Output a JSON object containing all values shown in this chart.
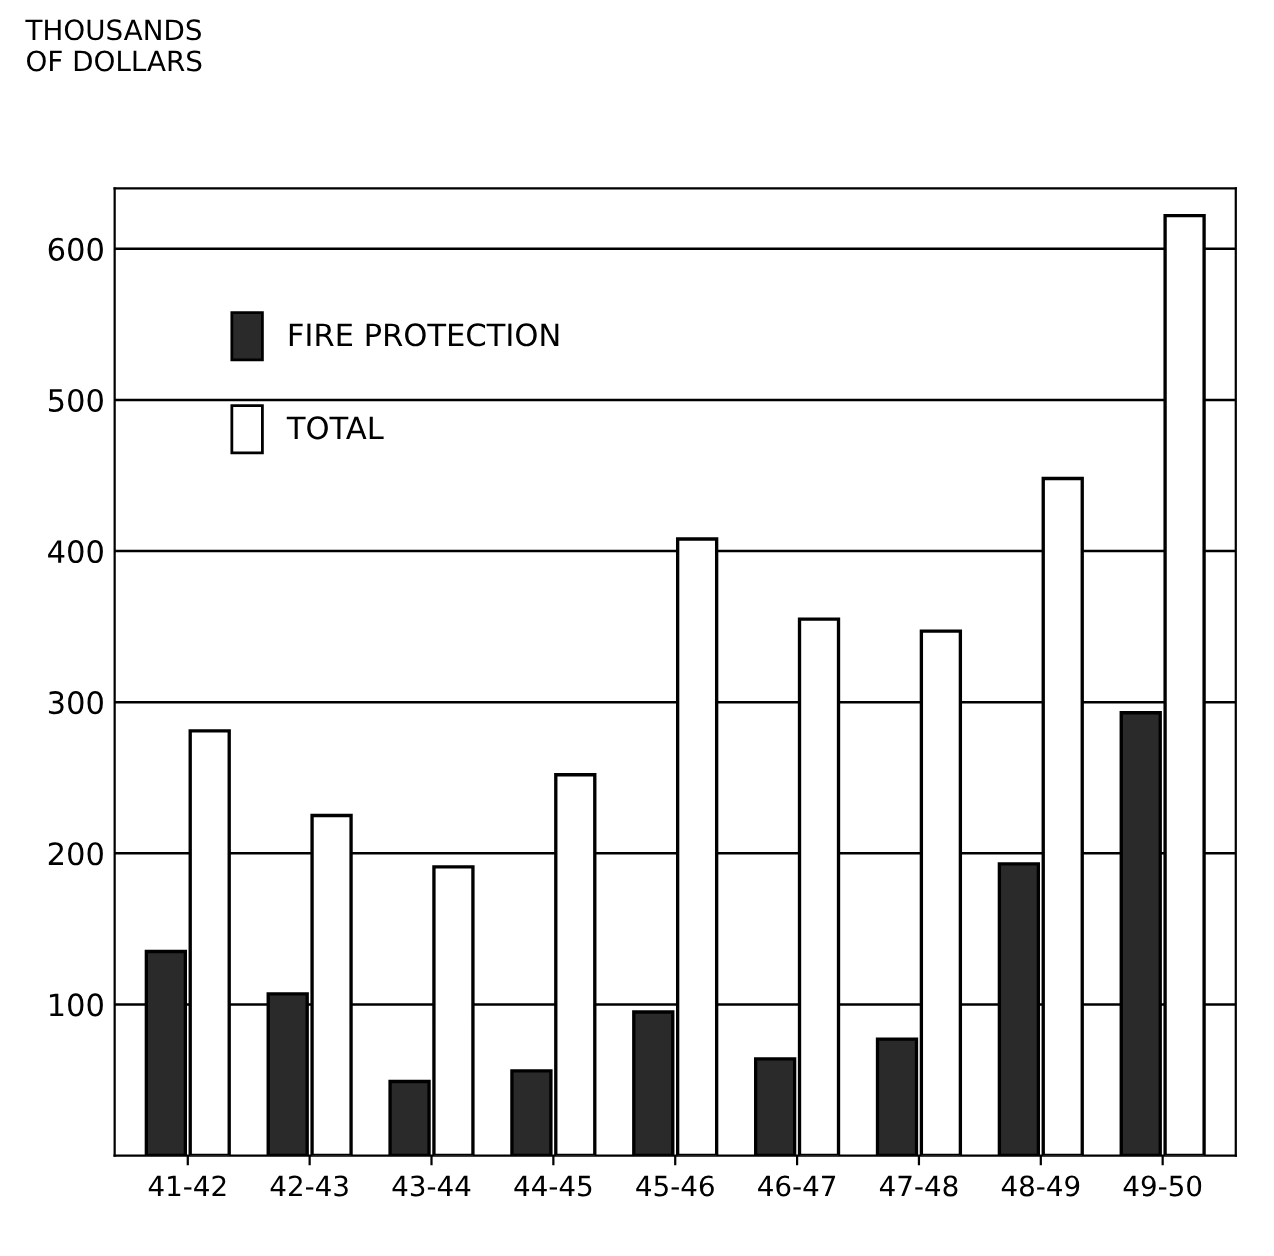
{
  "chart_data": {
    "type": "bar",
    "ylabel": "THOUSANDS\nOF DOLLARS",
    "categories": [
      "41-42",
      "42-43",
      "43-44",
      "44-45",
      "45-46",
      "46-47",
      "47-48",
      "48-49",
      "49-50"
    ],
    "series": [
      {
        "name": "FIRE PROTECTION",
        "color": "#2a2a2a",
        "values": [
          135,
          107,
          49,
          56,
          95,
          64,
          77,
          193,
          293
        ]
      },
      {
        "name": "TOTAL",
        "color": "#ffffff",
        "values": [
          281,
          225,
          191,
          252,
          408,
          355,
          347,
          448,
          622
        ]
      }
    ],
    "ylim": [
      0,
      640
    ],
    "yticks": [
      100,
      200,
      300,
      400,
      500,
      600
    ],
    "grid": "y",
    "legend": "top left"
  }
}
